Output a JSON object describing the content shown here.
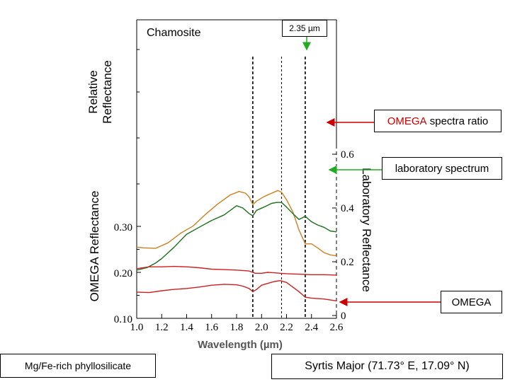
{
  "chart_data": {
    "type": "line",
    "title": "Chamosite",
    "xlabel": "Wavelength (µm)",
    "xlim": [
      1.0,
      2.6
    ],
    "x_ticks": [
      "1.0",
      "1.2",
      "1.4",
      "1.6",
      "1.8",
      "2.0",
      "2.2",
      "2.4",
      "2.6"
    ],
    "y_left_label": "OMEGA Reflectance",
    "y_left_ticks": [
      "0.10",
      "0.20",
      "0.30"
    ],
    "y_upper_left_label": "Relative\nReflectance",
    "y_right_label": "Laboratory Reflectance",
    "y_right_ticks": [
      "0",
      "0.2",
      "0.4",
      "0.6"
    ],
    "vertical_markers_um": [
      1.93,
      2.16,
      2.35
    ],
    "series": [
      {
        "name": "OMEGA spectra ratio",
        "color": "#cc8020",
        "x": [
          1.0,
          1.05,
          1.15,
          1.25,
          1.35,
          1.45,
          1.55,
          1.65,
          1.75,
          1.82,
          1.87,
          1.9,
          1.93,
          1.96,
          2.02,
          2.08,
          2.13,
          2.16,
          2.2,
          2.25,
          2.3,
          2.35,
          2.4,
          2.45,
          2.5,
          2.55,
          2.6
        ],
        "y": [
          0.255,
          0.254,
          0.253,
          0.265,
          0.285,
          0.3,
          0.325,
          0.348,
          0.368,
          0.376,
          0.373,
          0.365,
          0.348,
          0.355,
          0.365,
          0.372,
          0.378,
          0.374,
          0.358,
          0.332,
          0.292,
          0.262,
          0.262,
          0.253,
          0.243,
          0.238,
          0.236
        ]
      },
      {
        "name": "laboratory spectrum",
        "color": "#1e6e1e",
        "x": [
          1.0,
          1.08,
          1.15,
          1.2,
          1.3,
          1.4,
          1.5,
          1.6,
          1.7,
          1.8,
          1.85,
          1.9,
          1.93,
          1.96,
          2.02,
          2.08,
          2.12,
          2.16,
          2.2,
          2.25,
          2.3,
          2.35,
          2.4,
          2.45,
          2.5,
          2.55,
          2.6
        ],
        "y": [
          0.205,
          0.21,
          0.22,
          0.23,
          0.255,
          0.283,
          0.298,
          0.313,
          0.325,
          0.345,
          0.34,
          0.328,
          0.323,
          0.335,
          0.342,
          0.35,
          0.352,
          0.352,
          0.342,
          0.328,
          0.315,
          0.322,
          0.31,
          0.303,
          0.298,
          0.29,
          0.288
        ]
      },
      {
        "name": "OMEGA (upper)",
        "color": "#cc2020",
        "x": [
          1.0,
          1.1,
          1.2,
          1.3,
          1.4,
          1.5,
          1.6,
          1.7,
          1.8,
          1.9,
          1.95,
          2.0,
          2.05,
          2.1,
          2.15,
          2.2,
          2.3,
          2.4,
          2.5,
          2.6
        ],
        "y": [
          0.208,
          0.212,
          0.212,
          0.213,
          0.212,
          0.21,
          0.207,
          0.206,
          0.205,
          0.203,
          0.198,
          0.198,
          0.2,
          0.199,
          0.198,
          0.197,
          0.196,
          0.195,
          0.195,
          0.194
        ]
      },
      {
        "name": "OMEGA (lower)",
        "color": "#cc2020",
        "x": [
          1.0,
          1.1,
          1.2,
          1.3,
          1.4,
          1.5,
          1.6,
          1.7,
          1.8,
          1.85,
          1.9,
          1.93,
          1.96,
          2.0,
          2.05,
          2.1,
          2.15,
          2.2,
          2.25,
          2.3,
          2.35,
          2.4,
          2.5,
          2.6
        ],
        "y": [
          0.157,
          0.156,
          0.16,
          0.163,
          0.165,
          0.168,
          0.172,
          0.174,
          0.173,
          0.17,
          0.165,
          0.158,
          0.163,
          0.172,
          0.176,
          0.18,
          0.182,
          0.178,
          0.168,
          0.158,
          0.146,
          0.144,
          0.142,
          0.138
        ]
      }
    ]
  },
  "annotations": {
    "marker_label": "2.35 µm",
    "omega_ratio_label_prefix": "OMEGA",
    "omega_ratio_label_suffix": " spectra ratio",
    "lab_label": "laboratory spectrum",
    "omega_label": "OMEGA",
    "mineral_label": "Mg/Fe-rich phyllosilicate",
    "location_label": "Syrtis Major (71.73° E, 17.09° N)"
  },
  "colors": {
    "red_arrow": "#cc0000",
    "green_arrow": "#22aa22",
    "green_marker": "#22aa22"
  }
}
